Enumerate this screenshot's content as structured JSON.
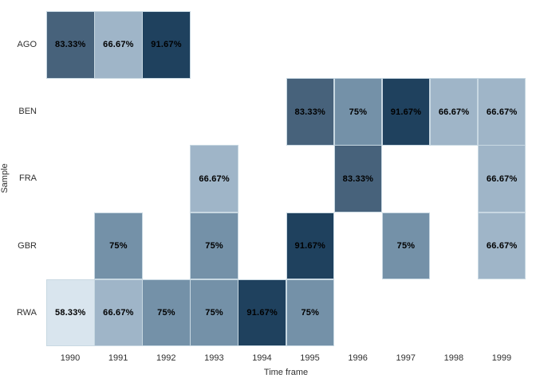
{
  "chart_data": {
    "type": "heatmap",
    "title": "",
    "xlabel": "Time frame",
    "ylabel": "Sample",
    "x_categories": [
      "1990",
      "1991",
      "1992",
      "1993",
      "1994",
      "1995",
      "1996",
      "1997",
      "1998",
      "1999"
    ],
    "y_categories": [
      "AGO",
      "BEN",
      "FRA",
      "GBR",
      "RWA"
    ],
    "legend": "none",
    "grid": "off",
    "background": "#ffffff",
    "cell_border_color": "#c8d8e2",
    "value_label_color": "#000000",
    "axis_text_color": "#303030",
    "colors": {
      "58.33": "#d9e5ee",
      "66.67": "#9fb5c8",
      "75": "#7491a8",
      "83.33": "#47627b",
      "91.67": "#1f415e"
    },
    "cells": [
      {
        "y": "AGO",
        "x": "1990",
        "label": "83.33%",
        "value": 83.33
      },
      {
        "y": "AGO",
        "x": "1991",
        "label": "66.67%",
        "value": 66.67
      },
      {
        "y": "AGO",
        "x": "1992",
        "label": "91.67%",
        "value": 91.67
      },
      {
        "y": "BEN",
        "x": "1995",
        "label": "83.33%",
        "value": 83.33
      },
      {
        "y": "BEN",
        "x": "1996",
        "label": "75%",
        "value": 75
      },
      {
        "y": "BEN",
        "x": "1997",
        "label": "91.67%",
        "value": 91.67
      },
      {
        "y": "BEN",
        "x": "1998",
        "label": "66.67%",
        "value": 66.67
      },
      {
        "y": "BEN",
        "x": "1999",
        "label": "66.67%",
        "value": 66.67
      },
      {
        "y": "FRA",
        "x": "1993",
        "label": "66.67%",
        "value": 66.67
      },
      {
        "y": "FRA",
        "x": "1996",
        "label": "83.33%",
        "value": 83.33
      },
      {
        "y": "FRA",
        "x": "1999",
        "label": "66.67%",
        "value": 66.67
      },
      {
        "y": "GBR",
        "x": "1991",
        "label": "75%",
        "value": 75
      },
      {
        "y": "GBR",
        "x": "1993",
        "label": "75%",
        "value": 75
      },
      {
        "y": "GBR",
        "x": "1995",
        "label": "91.67%",
        "value": 91.67
      },
      {
        "y": "GBR",
        "x": "1997",
        "label": "75%",
        "value": 75
      },
      {
        "y": "GBR",
        "x": "1999",
        "label": "66.67%",
        "value": 66.67
      },
      {
        "y": "RWA",
        "x": "1990",
        "label": "58.33%",
        "value": 58.33
      },
      {
        "y": "RWA",
        "x": "1991",
        "label": "66.67%",
        "value": 66.67
      },
      {
        "y": "RWA",
        "x": "1992",
        "label": "75%",
        "value": 75
      },
      {
        "y": "RWA",
        "x": "1993",
        "label": "75%",
        "value": 75
      },
      {
        "y": "RWA",
        "x": "1994",
        "label": "91.67%",
        "value": 91.67
      },
      {
        "y": "RWA",
        "x": "1995",
        "label": "75%",
        "value": 75
      }
    ]
  }
}
